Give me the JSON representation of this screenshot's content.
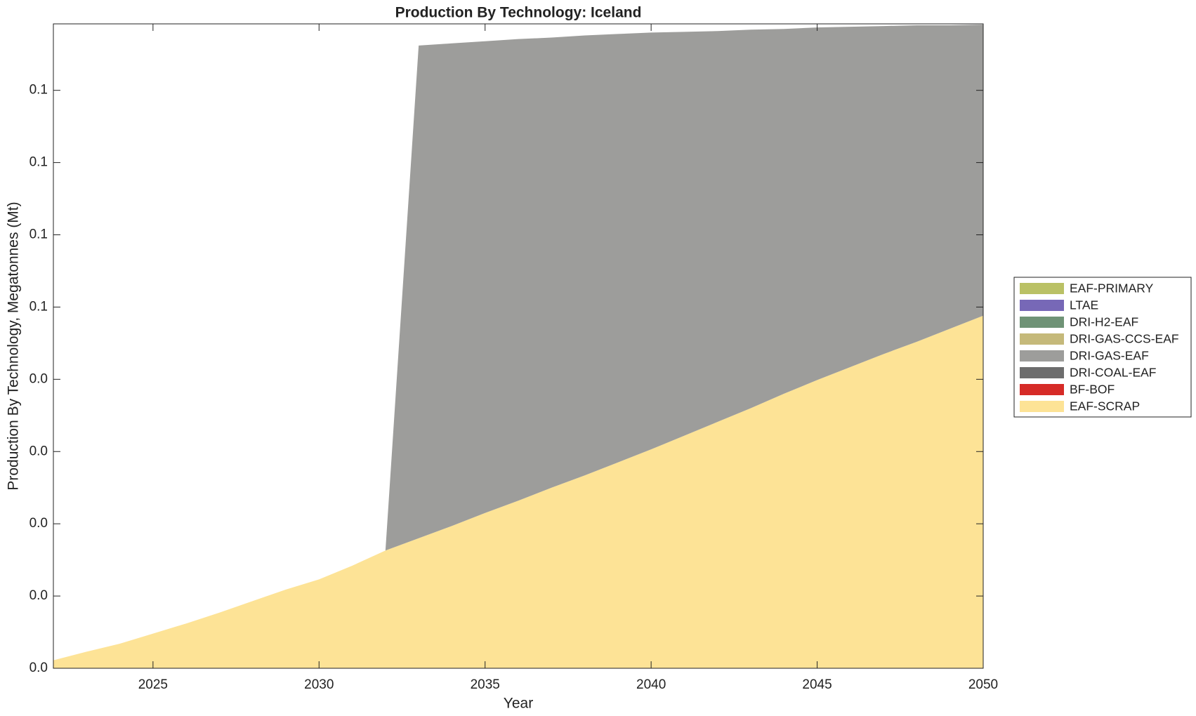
{
  "chart_data": {
    "type": "stacked-area",
    "title": "Production By Technology: Iceland",
    "xlabel": "Year",
    "ylabel": "Production By Technology, Megatonnes (Mt)",
    "x": [
      2022,
      2023,
      2024,
      2025,
      2026,
      2027,
      2028,
      2029,
      2030,
      2031,
      2032,
      2033,
      2034,
      2035,
      2036,
      2037,
      2038,
      2039,
      2040,
      2041,
      2042,
      2043,
      2044,
      2045,
      2046,
      2047,
      2048,
      2049,
      2050
    ],
    "xlim": [
      2022,
      2050
    ],
    "xticks": [
      2025,
      2030,
      2035,
      2040,
      2045,
      2050
    ],
    "ylim": [
      0,
      0.0892
    ],
    "yticks": [
      {
        "value": 0,
        "label": "0.0"
      },
      {
        "value": 0.01,
        "label": "0.0"
      },
      {
        "value": 0.02,
        "label": "0.0"
      },
      {
        "value": 0.03,
        "label": "0.0"
      },
      {
        "value": 0.04,
        "label": "0.0"
      },
      {
        "value": 0.05,
        "label": "0.1"
      },
      {
        "value": 0.06,
        "label": "0.1"
      },
      {
        "value": 0.07,
        "label": "0.1"
      },
      {
        "value": 0.08,
        "label": "0.1"
      }
    ],
    "legend": "right",
    "series": [
      {
        "name": "EAF-SCRAP",
        "color": "#fde396",
        "values": [
          0.0011,
          0.0023,
          0.0034,
          0.0048,
          0.0062,
          0.0077,
          0.0093,
          0.0109,
          0.0123,
          0.0142,
          0.0163,
          0.018,
          0.0197,
          0.0215,
          0.0232,
          0.025,
          0.0267,
          0.0285,
          0.0303,
          0.0322,
          0.0341,
          0.036,
          0.038,
          0.0399,
          0.0417,
          0.0435,
          0.0452,
          0.047,
          0.0488
        ]
      },
      {
        "name": "BF-BOF",
        "color": "#d62b27",
        "values": [
          0,
          0,
          0,
          0,
          0,
          0,
          0,
          0,
          0,
          0,
          0,
          0,
          0,
          0,
          0,
          0,
          0,
          0,
          0,
          0,
          0,
          0,
          0,
          0,
          0,
          0,
          0,
          0,
          0
        ]
      },
      {
        "name": "DRI-COAL-EAF",
        "color": "#6d6d6d",
        "values": [
          0,
          0,
          0,
          0,
          0,
          0,
          0,
          0,
          0,
          0,
          0,
          0,
          0,
          0,
          0,
          0,
          0,
          0,
          0,
          0,
          0,
          0,
          0,
          0,
          0,
          0,
          0,
          0,
          0
        ]
      },
      {
        "name": "DRI-GAS-EAF",
        "color": "#9d9d9b",
        "values": [
          0,
          0,
          0,
          0,
          0,
          0,
          0,
          0,
          0,
          0,
          0,
          0.0682,
          0.0668,
          0.0653,
          0.0639,
          0.0623,
          0.0609,
          0.0593,
          0.0577,
          0.0559,
          0.0541,
          0.0524,
          0.0505,
          0.0488,
          0.0471,
          0.0454,
          0.0438,
          0.042,
          0.0403
        ]
      },
      {
        "name": "DRI-GAS-CCS-EAF",
        "color": "#c5b97a",
        "values": [
          0,
          0,
          0,
          0,
          0,
          0,
          0,
          0,
          0,
          0,
          0,
          0,
          0,
          0,
          0,
          0,
          0,
          0,
          0,
          0,
          0,
          0,
          0,
          0,
          0,
          0,
          0,
          0,
          0
        ]
      },
      {
        "name": "DRI-H2-EAF",
        "color": "#6f9376",
        "values": [
          0,
          0,
          0,
          0,
          0,
          0,
          0,
          0,
          0,
          0,
          0,
          0,
          0,
          0,
          0,
          0,
          0,
          0,
          0,
          0,
          0,
          0,
          0,
          0,
          0,
          0,
          0,
          0,
          0
        ]
      },
      {
        "name": "LTAE",
        "color": "#7768b7",
        "values": [
          0,
          0,
          0,
          0,
          0,
          0,
          0,
          0,
          0,
          0,
          0,
          0,
          0,
          0,
          0,
          0,
          0,
          0,
          0,
          0,
          0,
          0,
          0,
          0,
          0,
          0,
          0,
          0,
          0
        ]
      },
      {
        "name": "EAF-PRIMARY",
        "color": "#bac165",
        "values": [
          0,
          0,
          0,
          0,
          0,
          0,
          0,
          0,
          0,
          0,
          0,
          0,
          0,
          0,
          0,
          0,
          0,
          0,
          0,
          0,
          0,
          0,
          0,
          0,
          0,
          0,
          0,
          0,
          0
        ]
      }
    ]
  }
}
